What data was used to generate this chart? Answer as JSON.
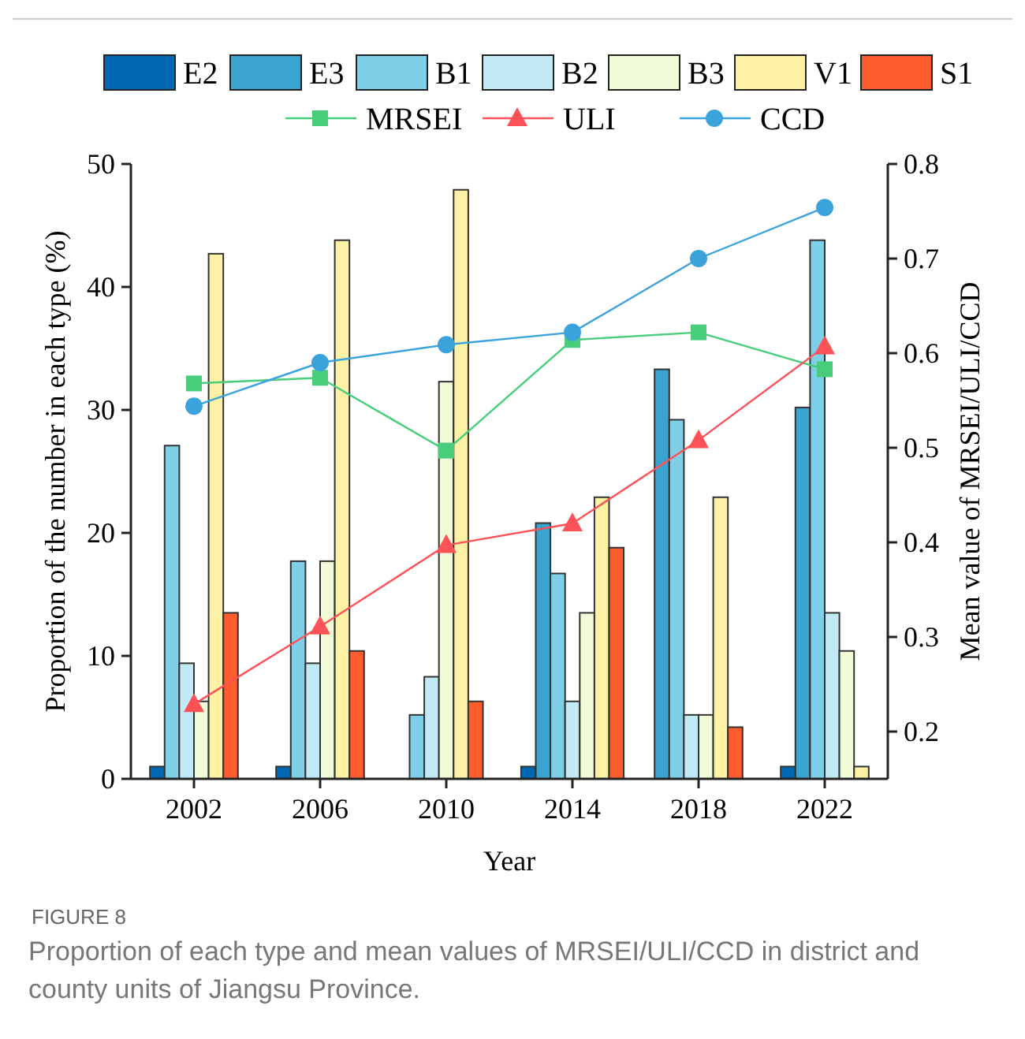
{
  "chart_data": {
    "type": "bar",
    "xlabel": "Year",
    "ylabel": "Proportion of the number in each type (%)",
    "y2label": "Mean value of MRSEI/ULI/CCD",
    "categories": [
      "2002",
      "2006",
      "2010",
      "2014",
      "2018",
      "2022"
    ],
    "series": [
      {
        "name": "E2",
        "color": "#0068b1",
        "values": [
          1.0,
          1.0,
          0,
          1.0,
          0,
          1.0
        ]
      },
      {
        "name": "E3",
        "color": "#3ba3d0",
        "values": [
          0,
          0,
          0,
          20.8,
          33.3,
          30.2
        ]
      },
      {
        "name": "B1",
        "color": "#80cfe9",
        "values": [
          27.1,
          17.7,
          5.2,
          16.7,
          29.2,
          43.8
        ]
      },
      {
        "name": "B2",
        "color": "#c2eaf4",
        "values": [
          9.4,
          9.4,
          8.3,
          6.3,
          5.2,
          13.5
        ]
      },
      {
        "name": "B3",
        "color": "#f2fbd8",
        "values": [
          6.3,
          17.7,
          32.3,
          13.5,
          5.2,
          10.4
        ]
      },
      {
        "name": "V1",
        "color": "#fdf1a6",
        "values": [
          42.7,
          43.8,
          47.9,
          22.9,
          22.9,
          1.0
        ]
      },
      {
        "name": "S1",
        "color": "#fd5c2f",
        "values": [
          13.5,
          10.4,
          6.3,
          18.8,
          4.2,
          0
        ]
      },
      {
        "name": "MRSEI",
        "type": "line",
        "axis": "y2",
        "color": "#48cd7b",
        "marker": "square",
        "values": [
          0.568,
          0.574,
          0.497,
          0.614,
          0.622,
          0.583
        ]
      },
      {
        "name": "ULI",
        "type": "line",
        "axis": "y2",
        "color": "#fd5257",
        "marker": "triangle",
        "values": [
          0.229,
          0.311,
          0.397,
          0.42,
          0.508,
          0.607
        ]
      },
      {
        "name": "CCD",
        "type": "line",
        "axis": "y2",
        "color": "#3ba3dc",
        "marker": "circle",
        "values": [
          0.544,
          0.59,
          0.609,
          0.622,
          0.7,
          0.754
        ]
      }
    ],
    "ylim": [
      0,
      50
    ],
    "yticks": [
      0,
      10,
      20,
      30,
      40,
      50
    ],
    "y2lim": [
      0.15,
      0.8
    ],
    "y2ticks": [
      0.2,
      0.3,
      0.4,
      0.5,
      0.6,
      0.7,
      0.8
    ],
    "legend": "top",
    "grid": false,
    "annotations": [
      "FIGURE 8",
      "Proportion of each type and mean values of MRSEI/ULI/CCD in district and county units of Jiangsu Province."
    ]
  }
}
